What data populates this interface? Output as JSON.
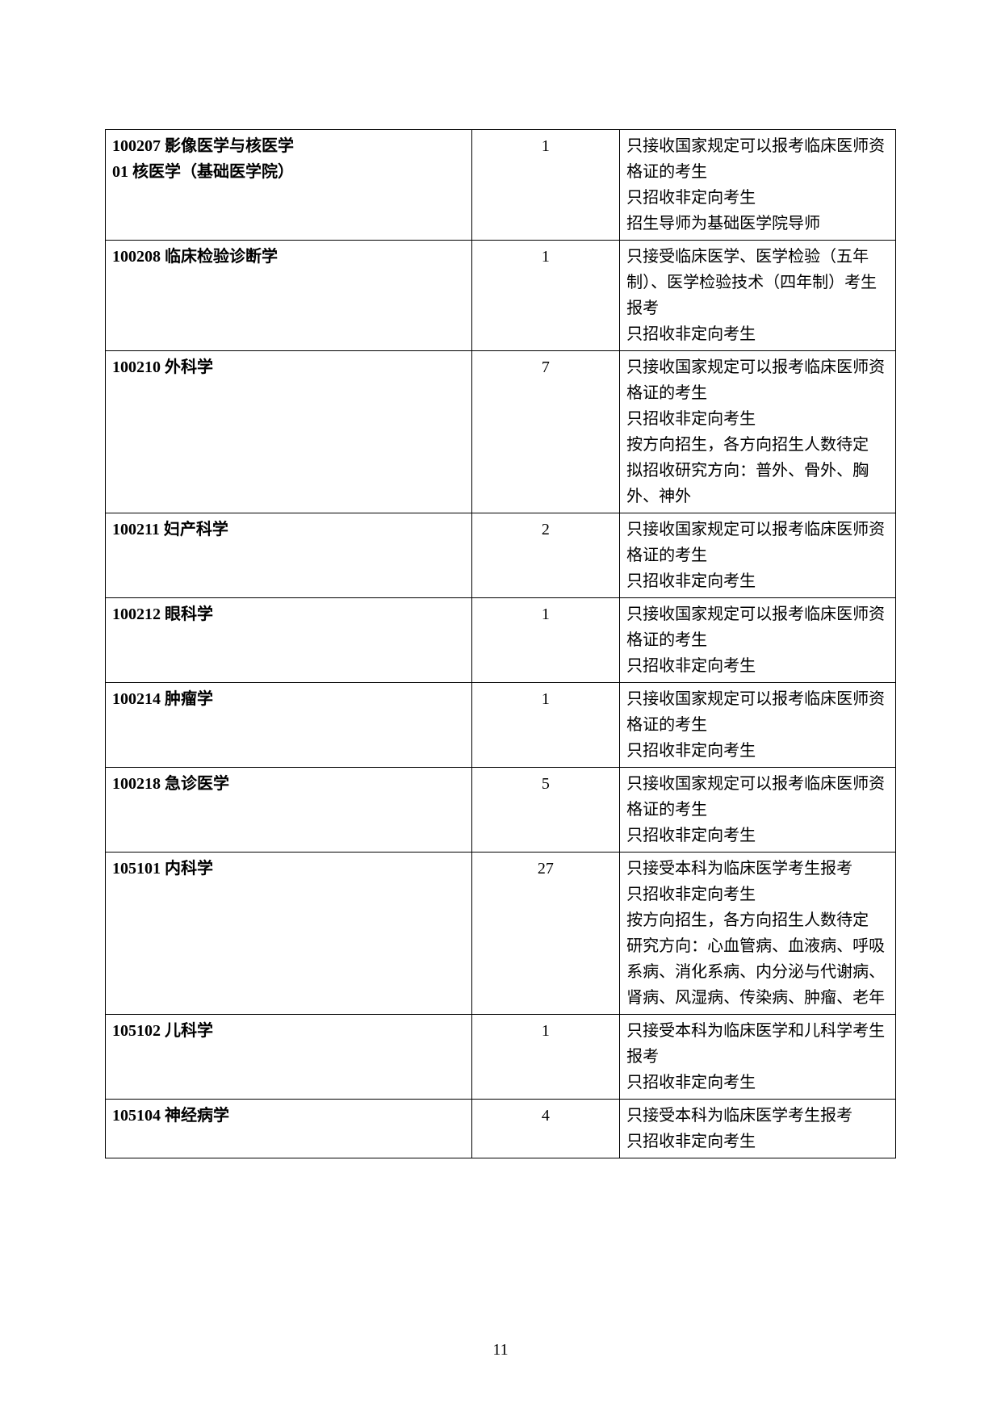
{
  "page_number": "11",
  "table": {
    "rows": [
      {
        "name": "100207 影像医学与核医学\n01 核医学（基础医学院）",
        "num": "1",
        "notes": "只接收国家规定可以报考临床医师资格证的考生\n只招收非定向考生\n招生导师为基础医学院导师"
      },
      {
        "name": "100208 临床检验诊断学",
        "num": "1",
        "notes": "只接受临床医学、医学检验（五年制）、医学检验技术（四年制）考生报考\n只招收非定向考生"
      },
      {
        "name": "100210 外科学",
        "num": "7",
        "notes": "只接收国家规定可以报考临床医师资格证的考生\n只招收非定向考生\n按方向招生，各方向招生人数待定\n拟招收研究方向：普外、骨外、胸外、神外"
      },
      {
        "name": "100211 妇产科学",
        "num": "2",
        "notes": "只接收国家规定可以报考临床医师资格证的考生\n只招收非定向考生"
      },
      {
        "name": "100212 眼科学",
        "num": "1",
        "notes": "只接收国家规定可以报考临床医师资格证的考生\n只招收非定向考生"
      },
      {
        "name": "100214 肿瘤学",
        "num": "1",
        "notes": "只接收国家规定可以报考临床医师资格证的考生\n只招收非定向考生"
      },
      {
        "name": "100218 急诊医学",
        "num": "5",
        "notes": "只接收国家规定可以报考临床医师资格证的考生\n只招收非定向考生"
      },
      {
        "name": "105101 内科学",
        "num": "27",
        "notes": "只接受本科为临床医学考生报考\n只招收非定向考生\n按方向招生，各方向招生人数待定\n研究方向：心血管病、血液病、呼吸系病、消化系病、内分泌与代谢病、肾病、风湿病、传染病、肿瘤、老年"
      },
      {
        "name": "105102 儿科学",
        "num": "1",
        "notes": "只接受本科为临床医学和儿科学考生报考\n只招收非定向考生"
      },
      {
        "name": "105104 神经病学",
        "num": "4",
        "notes": "只接受本科为临床医学考生报考\n只招收非定向考生"
      }
    ]
  }
}
